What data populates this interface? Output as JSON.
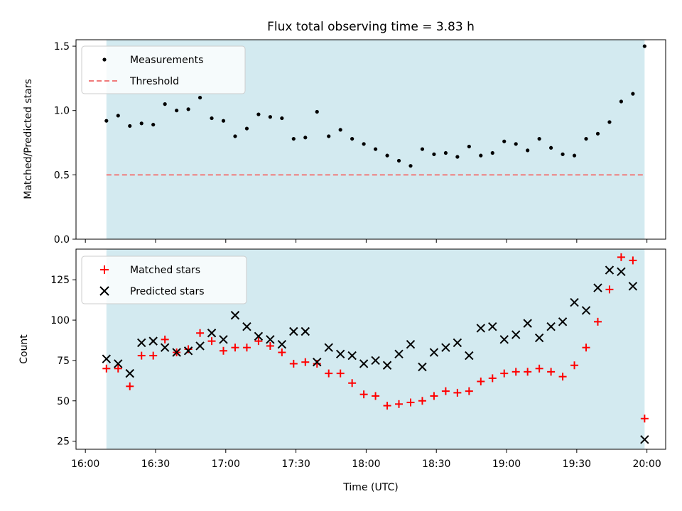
{
  "chart_data": [
    {
      "type": "scatter",
      "title": "Flux total observing time = 3.83 h",
      "ylabel": "Matched/Predicted stars",
      "xlabel": "",
      "ylim": [
        0.0,
        1.55
      ],
      "yticks": [
        0.0,
        0.5,
        1.0,
        1.5
      ],
      "ytick_labels": [
        "0.0",
        "0.5",
        "1.0",
        "1.5"
      ],
      "legend_position": "upper-left",
      "shaded_span": {
        "start": "16:09",
        "end": "19:59",
        "color": "#d3eaf0"
      },
      "series": [
        {
          "name": "Measurements",
          "marker": "dot",
          "color": "#000000",
          "x": [
            "16:09",
            "16:14",
            "16:19",
            "16:24",
            "16:29",
            "16:34",
            "16:39",
            "16:44",
            "16:49",
            "16:54",
            "16:59",
            "17:04",
            "17:09",
            "17:14",
            "17:19",
            "17:24",
            "17:29",
            "17:34",
            "17:39",
            "17:44",
            "17:49",
            "17:54",
            "17:59",
            "18:04",
            "18:09",
            "18:14",
            "18:19",
            "18:24",
            "18:29",
            "18:34",
            "18:39",
            "18:44",
            "18:49",
            "18:54",
            "18:59",
            "19:04",
            "19:09",
            "19:14",
            "19:19",
            "19:24",
            "19:29",
            "19:34",
            "19:39",
            "19:44",
            "19:49",
            "19:54",
            "19:59"
          ],
          "values": [
            0.92,
            0.96,
            0.88,
            0.9,
            0.89,
            1.05,
            1.0,
            1.01,
            1.1,
            0.94,
            0.92,
            0.8,
            0.86,
            0.97,
            0.95,
            0.94,
            0.78,
            0.79,
            0.99,
            0.8,
            0.85,
            0.78,
            0.74,
            0.7,
            0.65,
            0.61,
            0.57,
            0.7,
            0.66,
            0.67,
            0.64,
            0.72,
            0.65,
            0.67,
            0.76,
            0.74,
            0.69,
            0.78,
            0.71,
            0.66,
            0.65,
            0.78,
            0.82,
            0.91,
            1.07,
            1.13,
            1.5
          ]
        },
        {
          "name": "Threshold",
          "marker": "dashed-line",
          "color": "#f07a7a",
          "x": [
            "16:09",
            "19:59"
          ],
          "values": [
            0.5,
            0.5
          ]
        }
      ]
    },
    {
      "type": "scatter",
      "title": "",
      "xlabel": "Time (UTC)",
      "ylabel": "Count",
      "ylim": [
        20,
        144
      ],
      "yticks": [
        25,
        50,
        75,
        100,
        125
      ],
      "ytick_labels": [
        "25",
        "50",
        "75",
        "100",
        "125"
      ],
      "xlim": [
        "15:56",
        "20:08"
      ],
      "xticks": [
        "16:00",
        "16:30",
        "17:00",
        "17:30",
        "18:00",
        "18:30",
        "19:00",
        "19:30",
        "20:00"
      ],
      "legend_position": "upper-left",
      "shaded_span": {
        "start": "16:09",
        "end": "19:59",
        "color": "#d3eaf0"
      },
      "series": [
        {
          "name": "Matched stars",
          "marker": "plus",
          "color": "#ff0000",
          "x": [
            "16:09",
            "16:14",
            "16:19",
            "16:24",
            "16:29",
            "16:34",
            "16:39",
            "16:44",
            "16:49",
            "16:54",
            "16:59",
            "17:04",
            "17:09",
            "17:14",
            "17:19",
            "17:24",
            "17:29",
            "17:34",
            "17:39",
            "17:44",
            "17:49",
            "17:54",
            "17:59",
            "18:04",
            "18:09",
            "18:14",
            "18:19",
            "18:24",
            "18:29",
            "18:34",
            "18:39",
            "18:44",
            "18:49",
            "18:54",
            "18:59",
            "19:04",
            "19:09",
            "19:14",
            "19:19",
            "19:24",
            "19:29",
            "19:34",
            "19:39",
            "19:44",
            "19:49",
            "19:54",
            "19:59"
          ],
          "values": [
            70,
            70,
            59,
            78,
            78,
            88,
            80,
            82,
            92,
            87,
            81,
            83,
            83,
            87,
            84,
            80,
            73,
            74,
            73,
            67,
            67,
            61,
            54,
            53,
            47,
            48,
            49,
            50,
            53,
            56,
            55,
            56,
            62,
            64,
            67,
            68,
            68,
            70,
            68,
            65,
            72,
            83,
            99,
            119,
            139,
            137,
            39
          ]
        },
        {
          "name": "Predicted stars",
          "marker": "x",
          "color": "#000000",
          "x": [
            "16:09",
            "16:14",
            "16:19",
            "16:24",
            "16:29",
            "16:34",
            "16:39",
            "16:44",
            "16:49",
            "16:54",
            "16:59",
            "17:04",
            "17:09",
            "17:14",
            "17:19",
            "17:24",
            "17:29",
            "17:34",
            "17:39",
            "17:44",
            "17:49",
            "17:54",
            "17:59",
            "18:04",
            "18:09",
            "18:14",
            "18:19",
            "18:24",
            "18:29",
            "18:34",
            "18:39",
            "18:44",
            "18:49",
            "18:54",
            "18:59",
            "19:04",
            "19:09",
            "19:14",
            "19:19",
            "19:24",
            "19:29",
            "19:34",
            "19:39",
            "19:44",
            "19:49",
            "19:54",
            "19:59"
          ],
          "values": [
            76,
            73,
            67,
            86,
            87,
            83,
            80,
            81,
            84,
            92,
            88,
            103,
            96,
            90,
            88,
            85,
            93,
            93,
            74,
            83,
            79,
            78,
            73,
            75,
            72,
            79,
            85,
            71,
            80,
            83,
            86,
            78,
            95,
            96,
            88,
            91,
            98,
            89,
            96,
            99,
            111,
            106,
            120,
            131,
            130,
            121,
            26
          ]
        }
      ]
    }
  ]
}
